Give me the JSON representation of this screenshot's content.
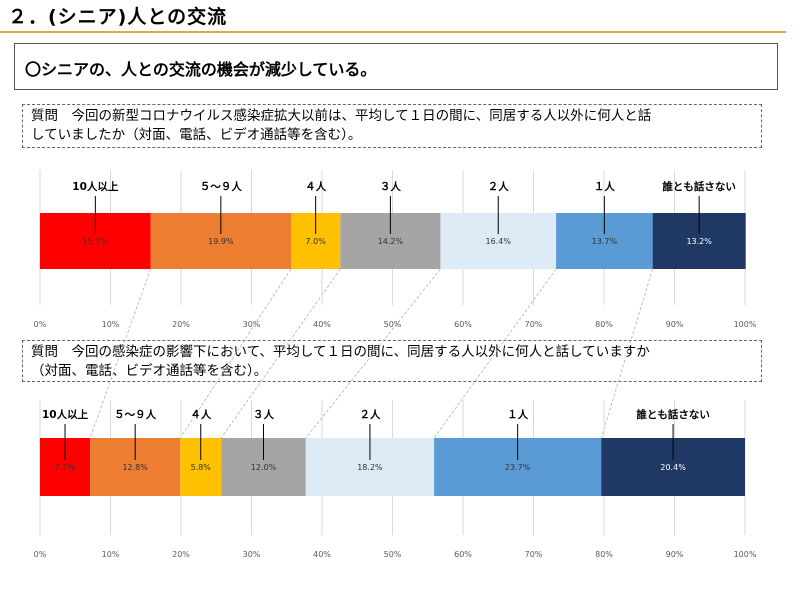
{
  "page": {
    "title": "２．(シニア)人との交流",
    "summary": "〇シニアの、人との交流の機会が減少している。"
  },
  "chart_data": [
    {
      "type": "bar",
      "orientation": "horizontal-stacked",
      "question_lines": [
        "質問　今回の新型コロナウイルス感染症拡大以前は、平均して１日の間に、同居する人以外に何人と話",
        "していましたか（対面、電話、ビデオ通話等を含む）。"
      ],
      "x_ticks": [
        "0%",
        "10%",
        "20%",
        "30%",
        "40%",
        "50%",
        "60%",
        "70%",
        "80%",
        "90%",
        "100%"
      ],
      "xlim": [
        0,
        100
      ],
      "grid": true,
      "series": [
        {
          "name": "10人以上",
          "value": 15.7,
          "label": "15.7%",
          "color": "#ff0000"
        },
        {
          "name": "５～９人",
          "value": 19.9,
          "label": "19.9%",
          "color": "#ed7d31"
        },
        {
          "name": "４人",
          "value": 7.0,
          "label": "7.0%",
          "color": "#ffc000"
        },
        {
          "name": "３人",
          "value": 14.2,
          "label": "14.2%",
          "color": "#a5a5a5"
        },
        {
          "name": "２人",
          "value": 16.4,
          "label": "16.4%",
          "color": "#ddebf7"
        },
        {
          "name": "１人",
          "value": 13.7,
          "label": "13.7%",
          "color": "#5b9bd5"
        },
        {
          "name": "誰とも話さない",
          "value": 13.2,
          "label": "13.2%",
          "color": "#203864"
        }
      ]
    },
    {
      "type": "bar",
      "orientation": "horizontal-stacked",
      "question_lines": [
        "質問　今回の感染症の影響下において、平均して１日の間に、同居する人以外に何人と話していますか",
        "（対面、電話、ビデオ通話等を含む）。"
      ],
      "x_ticks": [
        "0%",
        "10%",
        "20%",
        "30%",
        "40%",
        "50%",
        "60%",
        "70%",
        "80%",
        "90%",
        "100%"
      ],
      "xlim": [
        0,
        100
      ],
      "grid": true,
      "series": [
        {
          "name": "10人以上",
          "value": 7.1,
          "label": "7.1%",
          "color": "#ff0000"
        },
        {
          "name": "５～９人",
          "value": 12.8,
          "label": "12.8%",
          "color": "#ed7d31"
        },
        {
          "name": "４人",
          "value": 5.8,
          "label": "5.8%",
          "color": "#ffc000"
        },
        {
          "name": "３人",
          "value": 12.0,
          "label": "12.0%",
          "color": "#a5a5a5"
        },
        {
          "name": "２人",
          "value": 18.2,
          "label": "18.2%",
          "color": "#ddebf7"
        },
        {
          "name": "１人",
          "value": 23.7,
          "label": "23.7%",
          "color": "#5b9bd5"
        },
        {
          "name": "誰とも話さない",
          "value": 20.4,
          "label": "20.4%",
          "color": "#203864"
        }
      ]
    }
  ]
}
